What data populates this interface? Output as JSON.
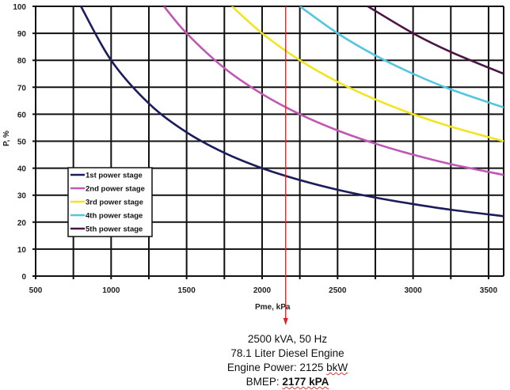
{
  "chart_data": {
    "type": "line",
    "xlabel": "Pme, kPa",
    "ylabel": "P, %",
    "xlim": [
      500,
      3600
    ],
    "ylim": [
      0,
      100
    ],
    "x_ticks": [
      500,
      1000,
      1500,
      2000,
      2500,
      3000,
      3500
    ],
    "y_ticks": [
      0,
      10,
      20,
      30,
      40,
      50,
      60,
      70,
      80,
      90,
      100
    ],
    "grid": true,
    "grid_x_step": 250,
    "legend_position": "lower-left",
    "series": [
      {
        "name": "1st power stage",
        "color": "#1c1c5c",
        "x": [
          800,
          1000,
          1250,
          1500,
          1750,
          2000,
          2250,
          2500,
          2750,
          3000,
          3250,
          3600
        ],
        "y": [
          100,
          80,
          64,
          53.3,
          45.7,
          40,
          35.6,
          32,
          29.1,
          26.7,
          24.6,
          22.2
        ]
      },
      {
        "name": "2nd power stage",
        "color": "#c256b4",
        "x": [
          1350,
          1500,
          1750,
          2000,
          2250,
          2500,
          2750,
          3000,
          3250,
          3600
        ],
        "y": [
          100,
          90,
          77.1,
          67.5,
          60,
          54,
          49.1,
          45,
          41.5,
          37.5
        ]
      },
      {
        "name": "3rd power stage",
        "color": "#f2e421",
        "x": [
          1800,
          2000,
          2250,
          2500,
          2750,
          3000,
          3250,
          3600
        ],
        "y": [
          100,
          90,
          80,
          72,
          65.5,
          60,
          55.4,
          50
        ]
      },
      {
        "name": "4th power stage",
        "color": "#55c6e0",
        "x": [
          2250,
          2500,
          2750,
          3000,
          3250,
          3600
        ],
        "y": [
          100,
          90,
          81.8,
          75,
          69.2,
          62.5
        ]
      },
      {
        "name": "5th power stage",
        "color": "#4a1443",
        "x": [
          2700,
          3000,
          3250,
          3600
        ],
        "y": [
          100,
          90,
          83.1,
          75
        ]
      }
    ],
    "marker": {
      "x": 2177,
      "color": "#e02020"
    }
  },
  "annotation": {
    "line1": "2500 kVA, 50 Hz",
    "line2": "78.1 Liter Diesel Engine",
    "line3_prefix": "Engine Power: 2125 ",
    "line3_unit": "bkW",
    "line4_prefix": "BMEP: ",
    "line4_value": "2177 kPA"
  }
}
